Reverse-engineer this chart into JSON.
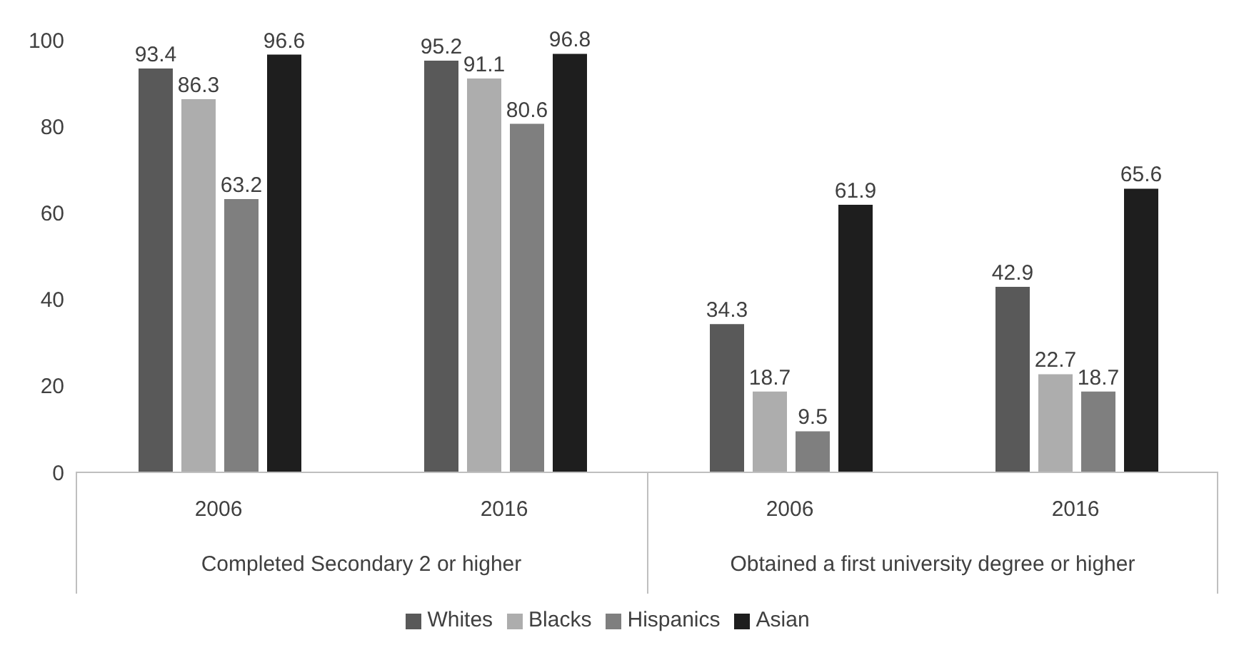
{
  "chart_data": {
    "type": "bar",
    "categories": [
      "2006",
      "2016",
      "2006",
      "2016"
    ],
    "series": [
      {
        "name": "Whites",
        "color": "#595959",
        "values": [
          93.4,
          95.2,
          34.3,
          42.9
        ]
      },
      {
        "name": "Blacks",
        "color": "#adadad",
        "values": [
          86.3,
          91.1,
          18.7,
          22.7
        ]
      },
      {
        "name": "Hispanics",
        "color": "#7f7f7f",
        "values": [
          63.2,
          80.6,
          9.5,
          18.7
        ]
      },
      {
        "name": "Asian",
        "color": "#1e1e1e",
        "values": [
          96.6,
          96.8,
          61.9,
          65.6
        ]
      }
    ],
    "ylim": [
      0,
      100
    ],
    "yticks": [
      0,
      20,
      40,
      60,
      80,
      100
    ],
    "grid": false,
    "legend": "bottom",
    "data_labels": true,
    "annotations": [
      "Completed Secondary 2 or higher",
      "Obtained a first university degree or higher"
    ]
  }
}
